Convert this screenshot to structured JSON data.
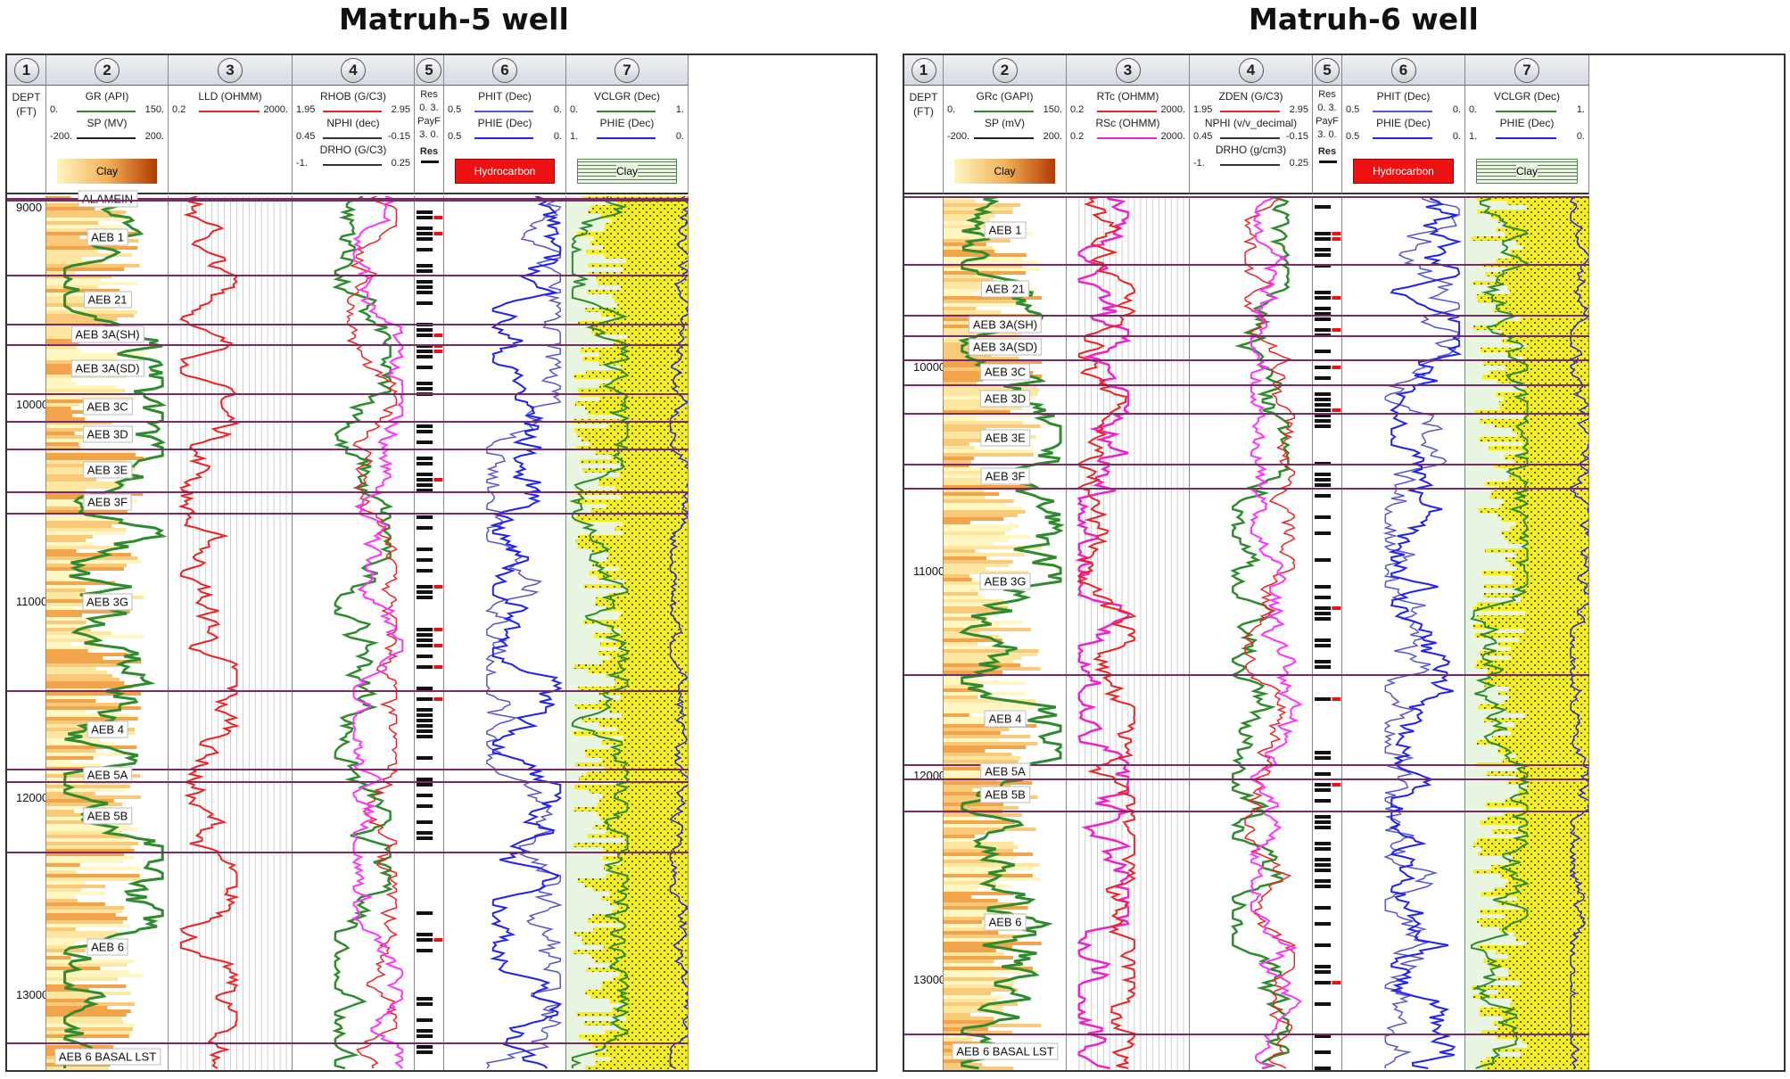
{
  "wells": [
    {
      "title": "Matruh-5 well",
      "depth_axis": {
        "label_line1": "DEPT",
        "label_line2": "(FT)",
        "ticks": [
          "9000",
          "10000",
          "11000",
          "12000",
          "13000"
        ]
      },
      "tracks": [
        {
          "number": "1"
        },
        {
          "number": "2",
          "curves": [
            {
              "name": "GR (API)",
              "min": "0.",
              "max": "150.",
              "color": "#2e8b2e"
            },
            {
              "name": "SP (MV)",
              "min": "-200.",
              "max": "200.",
              "color": "#222222"
            }
          ],
          "fill": {
            "label": "Clay",
            "color_start": "#fff6c2",
            "color_end": "#b23a00"
          }
        },
        {
          "number": "3",
          "curves": [
            {
              "name": "LLD (OHMM)",
              "min": "0.2",
              "max": "2000.",
              "color": "#ee2222"
            }
          ]
        },
        {
          "number": "4",
          "curves": [
            {
              "name": "RHOB (G/C3)",
              "min": "1.95",
              "max": "2.95",
              "color": "#ee2222"
            },
            {
              "name": "NPHI (dec)",
              "min": "0.45",
              "max": "-0.15",
              "color": "#333333"
            },
            {
              "name": "DRHO (G/C3)",
              "min": "-1.",
              "max": "0.25",
              "color": "#333333"
            }
          ]
        },
        {
          "number": "5",
          "labels": [
            "Res",
            "0. 3.",
            "PayF",
            "3. 0."
          ],
          "legend": "Res"
        },
        {
          "number": "6",
          "curves": [
            {
              "name": "PHIT (Dec)",
              "min": "0.5",
              "max": "0.",
              "color": "#5555cc"
            },
            {
              "name": "PHIE (Dec)",
              "min": "0.5",
              "max": "0.",
              "color": "#2222ee"
            }
          ],
          "fill": {
            "label": "Hydrocarbon",
            "color": "#ee1111"
          }
        },
        {
          "number": "7",
          "curves": [
            {
              "name": "VCLGR (Dec)",
              "min": "0.",
              "max": "1.",
              "color": "#2e8b2e"
            },
            {
              "name": "PHIE (Dec)",
              "min": "1.",
              "max": "0.",
              "color": "#2222ee"
            }
          ],
          "fill": {
            "label": "Clay",
            "color": "#e8f5e0"
          }
        }
      ],
      "zones": [
        {
          "name": "ALAMEIN",
          "top_ft": 8950
        },
        {
          "name": "AEB 1",
          "top_ft": 8960
        },
        {
          "name": "AEB 21",
          "top_ft": 9340
        },
        {
          "name": "AEB 3A(SH)",
          "top_ft": 9590
        },
        {
          "name": "AEB 3A(SD)",
          "top_ft": 9690
        },
        {
          "name": "AEB 3C",
          "top_ft": 9940
        },
        {
          "name": "AEB 3D",
          "top_ft": 10080
        },
        {
          "name": "AEB 3E",
          "top_ft": 10220
        },
        {
          "name": "AEB 3F",
          "top_ft": 10440
        },
        {
          "name": "AEB 3G",
          "top_ft": 10550
        },
        {
          "name": "AEB 4",
          "top_ft": 11450
        },
        {
          "name": "AEB 5A",
          "top_ft": 11850
        },
        {
          "name": "AEB 5B",
          "top_ft": 11910
        },
        {
          "name": "AEB 6",
          "top_ft": 12270
        },
        {
          "name": "AEB 6 BASAL LST",
          "top_ft": 13240
        }
      ]
    },
    {
      "title": "Matruh-6 well",
      "depth_axis": {
        "label_line1": "DEPT",
        "label_line2": "(FT)",
        "ticks": [
          "10000",
          "11000",
          "12000",
          "13000"
        ]
      },
      "tracks": [
        {
          "number": "1"
        },
        {
          "number": "2",
          "curves": [
            {
              "name": "GRc (GAPI)",
              "min": "0.",
              "max": "150.",
              "color": "#2e8b2e"
            },
            {
              "name": "SP (mV)",
              "min": "-200.",
              "max": "200.",
              "color": "#222222"
            }
          ],
          "fill": {
            "label": "Clay",
            "color_start": "#fff6c2",
            "color_end": "#b23a00"
          }
        },
        {
          "number": "3",
          "curves": [
            {
              "name": "RTc (OHMM)",
              "min": "0.2",
              "max": "2000.",
              "color": "#ee2222"
            },
            {
              "name": "RSc (OHMM)",
              "min": "0.2",
              "max": "2000.",
              "color": "#ee22cc"
            }
          ]
        },
        {
          "number": "4",
          "curves": [
            {
              "name": "ZDEN (G/C3)",
              "min": "1.95",
              "max": "2.95",
              "color": "#ee2222"
            },
            {
              "name": "NPHI (v/v_decimal)",
              "min": "0.45",
              "max": "-0.15",
              "color": "#333333"
            },
            {
              "name": "DRHO (g/cm3)",
              "min": "-1.",
              "max": "0.25",
              "color": "#333333"
            }
          ]
        },
        {
          "number": "5",
          "labels": [
            "Res",
            "0. 3.",
            "PayF",
            "3. 0."
          ],
          "legend": "Res"
        },
        {
          "number": "6",
          "curves": [
            {
              "name": "PHIT (Dec)",
              "min": "0.5",
              "max": "0.",
              "color": "#5555cc"
            },
            {
              "name": "PHIE (Dec)",
              "min": "0.5",
              "max": "0.",
              "color": "#2222ee"
            }
          ],
          "fill": {
            "label": "Hydrocarbon",
            "color": "#ee1111"
          }
        },
        {
          "number": "7",
          "curves": [
            {
              "name": "VCLGR (Dec)",
              "min": "0.",
              "max": "1.",
              "color": "#2e8b2e"
            },
            {
              "name": "PHIE (Dec)",
              "min": "1.",
              "max": "0.",
              "color": "#2222ee"
            }
          ],
          "fill": {
            "label": "Clay",
            "color": "#e8f5e0"
          }
        }
      ],
      "zones": [
        {
          "name": "AEB 1",
          "top_ft": 9160
        },
        {
          "name": "AEB 21",
          "top_ft": 9490
        },
        {
          "name": "AEB 3A(SH)",
          "top_ft": 9740
        },
        {
          "name": "AEB 3A(SD)",
          "top_ft": 9840
        },
        {
          "name": "AEB 3C",
          "top_ft": 9960
        },
        {
          "name": "AEB 3D",
          "top_ft": 10080
        },
        {
          "name": "AEB 3E",
          "top_ft": 10220
        },
        {
          "name": "AEB 3F",
          "top_ft": 10470
        },
        {
          "name": "AEB 3G",
          "top_ft": 10590
        },
        {
          "name": "AEB 4",
          "top_ft": 11500
        },
        {
          "name": "AEB 5A",
          "top_ft": 11940
        },
        {
          "name": "AEB 5B",
          "top_ft": 12010
        },
        {
          "name": "AEB 6",
          "top_ft": 12170
        },
        {
          "name": "AEB 6 BASAL LST",
          "top_ft": 13260
        }
      ]
    }
  ],
  "chart_data": [
    {
      "type": "well-log",
      "title": "Matruh-5 well",
      "ylabel": "DEPT (FT)",
      "ylim": [
        8940,
        13380
      ],
      "depth_ticks": [
        9000,
        10000,
        11000,
        12000,
        13000
      ],
      "zone_tops": {
        "ALAMEIN": 8950,
        "AEB 1": 8960,
        "AEB 21": 9340,
        "AEB 3A(SH)": 9590,
        "AEB 3A(SD)": 9690,
        "AEB 3C": 9940,
        "AEB 3D": 10080,
        "AEB 3E": 10220,
        "AEB 3F": 10440,
        "AEB 3G": 10550,
        "AEB 4": 11450,
        "AEB 5A": 11850,
        "AEB 5B": 11910,
        "AEB 6": 12270,
        "AEB 6 BASAL LST": 13240
      }
    },
    {
      "type": "well-log",
      "title": "Matruh-6 well",
      "ylabel": "DEPT (FT)",
      "ylim": [
        9160,
        13440
      ],
      "depth_ticks": [
        10000,
        11000,
        12000,
        13000
      ],
      "zone_tops": {
        "AEB 1": 9160,
        "AEB 21": 9490,
        "AEB 3A(SH)": 9740,
        "AEB 3A(SD)": 9840,
        "AEB 3C": 9960,
        "AEB 3D": 10080,
        "AEB 3E": 10220,
        "AEB 3F": 10470,
        "AEB 3G": 10590,
        "AEB 4": 11500,
        "AEB 5A": 11940,
        "AEB 5B": 12010,
        "AEB 6": 12170,
        "AEB 6 BASAL LST": 13260
      }
    }
  ]
}
